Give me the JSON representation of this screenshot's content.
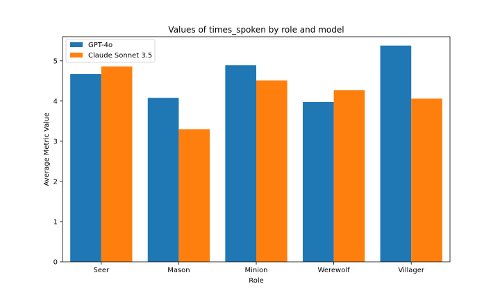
{
  "chart_data": {
    "type": "bar",
    "title": "Values of times_spoken by role and model",
    "xlabel": "Role",
    "ylabel": "Average Metric Value",
    "categories": [
      "Seer",
      "Mason",
      "Minion",
      "Werewolf",
      "Villager"
    ],
    "series": [
      {
        "name": "GPT-4o",
        "color": "#1f77b4",
        "values": [
          4.67,
          4.08,
          4.89,
          3.98,
          5.38
        ]
      },
      {
        "name": "Claude Sonnet 3.5",
        "color": "#ff7f0e",
        "values": [
          4.86,
          3.3,
          4.51,
          4.27,
          4.06
        ]
      }
    ],
    "ylim": [
      0,
      5.6
    ],
    "yticks": [
      0,
      1,
      2,
      3,
      4,
      5
    ],
    "ytick_labels": [
      "0",
      "1",
      "2",
      "3",
      "4",
      "5"
    ],
    "grid": false,
    "legend_position": "top-left"
  }
}
